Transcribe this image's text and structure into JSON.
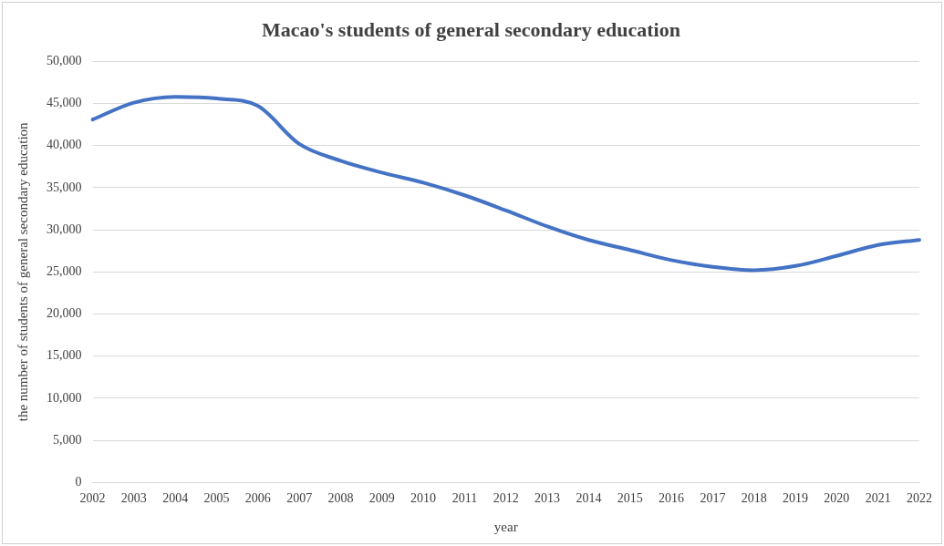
{
  "chart_data": {
    "type": "line",
    "title": "Macao's students of general secondary education",
    "xlabel": "year",
    "ylabel": "the number of students of general secondary education",
    "categories": [
      "2002",
      "2003",
      "2004",
      "2005",
      "2006",
      "2007",
      "2008",
      "2009",
      "2010",
      "2011",
      "2012",
      "2013",
      "2014",
      "2015",
      "2016",
      "2017",
      "2018",
      "2019",
      "2020",
      "2021",
      "2022"
    ],
    "series": [
      {
        "color": "#4472c4",
        "values": [
          43100,
          45100,
          45800,
          45600,
          44700,
          40200,
          38200,
          36800,
          35600,
          34100,
          32300,
          30400,
          28800,
          27600,
          26400,
          25600,
          25200,
          25700,
          26900,
          28200,
          28800
        ]
      }
    ],
    "ylim": [
      0,
      50000
    ],
    "yticks": [
      {
        "value": 0,
        "label": "0"
      },
      {
        "value": 5000,
        "label": "5,000"
      },
      {
        "value": 10000,
        "label": "10,000"
      },
      {
        "value": 15000,
        "label": "15,000"
      },
      {
        "value": 20000,
        "label": "20,000"
      },
      {
        "value": 25000,
        "label": "25,000"
      },
      {
        "value": 30000,
        "label": "30,000"
      },
      {
        "value": 35000,
        "label": "35,000"
      },
      {
        "value": 40000,
        "label": "40,000"
      },
      {
        "value": 45000,
        "label": "45,000"
      },
      {
        "value": 50000,
        "label": "50,000"
      }
    ],
    "grid": "y",
    "legend": false,
    "marker": "none",
    "line_style": "solid"
  }
}
